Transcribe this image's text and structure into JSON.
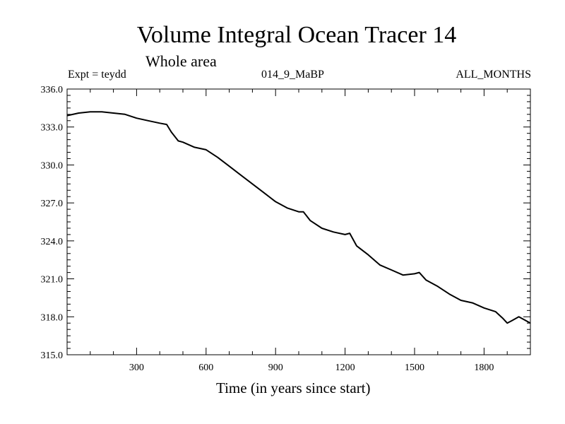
{
  "chart_data": {
    "type": "line",
    "title": "Volume Integral Ocean Tracer 14",
    "subtitle": "Whole area",
    "annotations": {
      "left": "Expt = teydd",
      "center": "014_9_MaBP",
      "right": "ALL_MONTHS"
    },
    "xlabel": "Time (in years since start)",
    "ylabel": "",
    "xlim": [
      0,
      2000
    ],
    "ylim": [
      315.0,
      336.0
    ],
    "x_ticks": [
      300,
      600,
      900,
      1200,
      1500,
      1800
    ],
    "x_tick_labels": [
      "300",
      "600",
      "900",
      "1200",
      "1500",
      "1800"
    ],
    "y_ticks": [
      315.0,
      318.0,
      321.0,
      324.0,
      327.0,
      330.0,
      333.0,
      336.0
    ],
    "y_tick_labels": [
      "315.0",
      "318.0",
      "321.0",
      "324.0",
      "327.0",
      "330.0",
      "333.0",
      "336.0"
    ],
    "grid": false,
    "series": [
      {
        "color": "#000000",
        "x": [
          0,
          50,
          100,
          150,
          200,
          250,
          300,
          350,
          400,
          430,
          450,
          480,
          500,
          550,
          600,
          650,
          700,
          750,
          800,
          850,
          900,
          950,
          1000,
          1020,
          1050,
          1100,
          1150,
          1200,
          1220,
          1250,
          1300,
          1350,
          1400,
          1450,
          1500,
          1520,
          1550,
          1600,
          1650,
          1700,
          1750,
          1800,
          1850,
          1880,
          1900,
          1920,
          1950,
          2000
        ],
        "y": [
          333.9,
          334.1,
          334.2,
          334.2,
          334.1,
          334.0,
          333.7,
          333.5,
          333.3,
          333.2,
          332.6,
          331.9,
          331.8,
          331.4,
          331.2,
          330.6,
          329.9,
          329.2,
          328.5,
          327.8,
          327.1,
          326.6,
          326.3,
          326.3,
          325.6,
          325.0,
          324.7,
          324.5,
          324.6,
          323.6,
          322.9,
          322.1,
          321.7,
          321.3,
          321.4,
          321.5,
          320.9,
          320.4,
          319.8,
          319.3,
          319.1,
          318.7,
          318.4,
          317.9,
          317.5,
          317.7,
          318.0,
          317.5
        ]
      }
    ]
  }
}
